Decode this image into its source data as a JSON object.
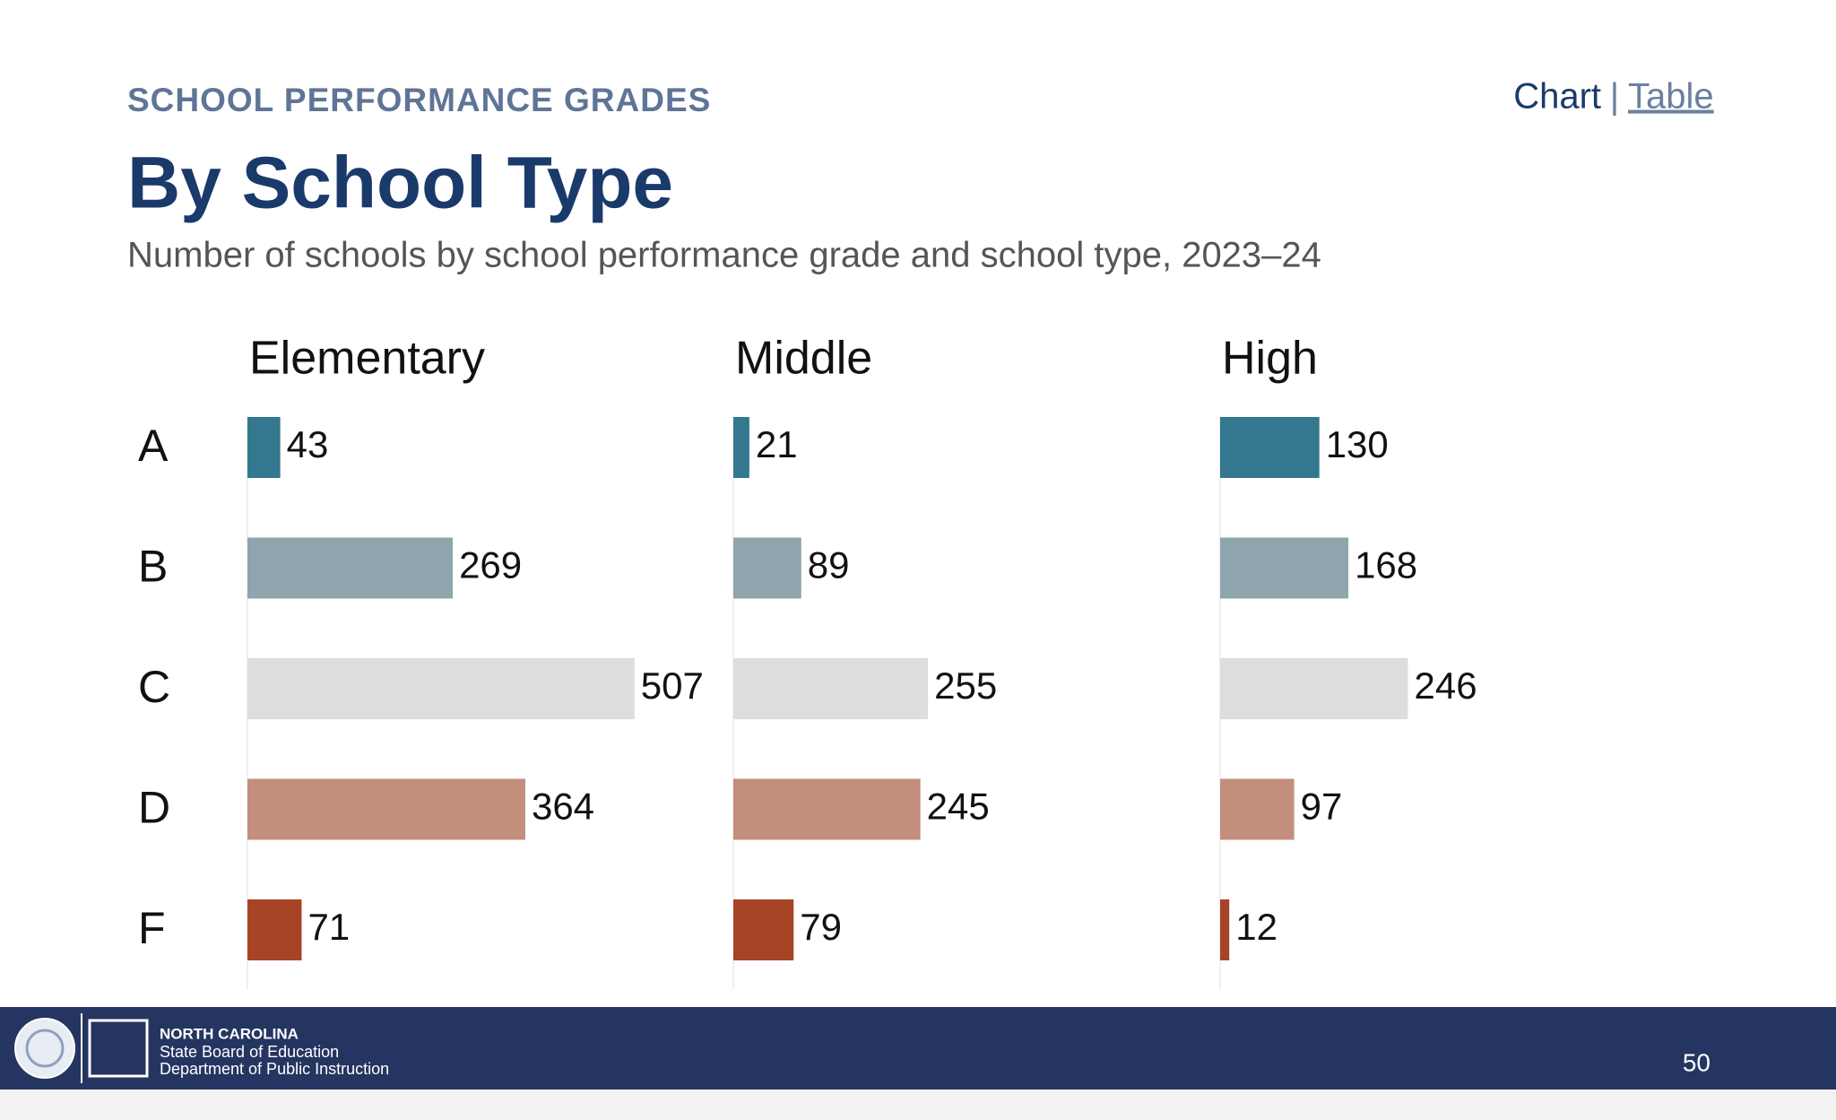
{
  "header": {
    "kicker": "SCHOOL PERFORMANCE GRADES",
    "nav": {
      "chart": "Chart",
      "separator": "|",
      "table": "Table"
    }
  },
  "chart_data": {
    "type": "bar",
    "title": "By School Type",
    "subtitle": "Number of schools by school performance grade and school type, 2023–24",
    "categories": [
      "A",
      "B",
      "C",
      "D",
      "F"
    ],
    "colors": [
      "#33788f",
      "#8fa5ad",
      "#dddddd",
      "#c38e7c",
      "#a84426"
    ],
    "series": [
      {
        "name": "Elementary",
        "values": [
          43,
          269,
          507,
          364,
          71
        ]
      },
      {
        "name": "Middle",
        "values": [
          21,
          89,
          255,
          245,
          79
        ]
      },
      {
        "name": "High",
        "values": [
          130,
          168,
          246,
          97,
          12
        ]
      }
    ],
    "xlim": [
      0,
      640
    ]
  },
  "footer": {
    "org": "NORTH CAROLINA",
    "line1": "State Board of Education",
    "line2": "Department of Public Instruction",
    "page": "50"
  }
}
